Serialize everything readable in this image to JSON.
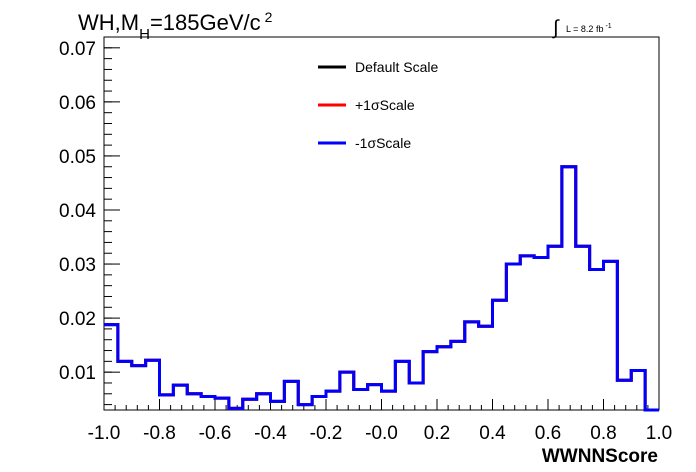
{
  "chart_data": {
    "type": "step-histogram",
    "title": "WH,M",
    "title_sub": "H",
    "title_rest": "=185GeV/c",
    "title_sup": "2",
    "lumi_integral": "∫",
    "lumi_text": "L = 8.2 fb",
    "lumi_sup": "-1",
    "xlabel": "WWNNScore",
    "ylabel": "",
    "xlim": [
      -1.0,
      1.0
    ],
    "ylim": [
      0.003,
      0.072
    ],
    "x_ticks": [
      -1.0,
      -0.8,
      -0.6,
      -0.4,
      -0.2,
      0.0,
      0.2,
      0.4,
      0.6,
      0.8,
      1.0
    ],
    "x_tick_labels": [
      "-1.0",
      "-0.8",
      "-0.6",
      "-0.4",
      "-0.2",
      "-0.0",
      "0.2",
      "0.4",
      "0.6",
      "0.8",
      "1.0"
    ],
    "y_ticks": [
      0.01,
      0.02,
      0.03,
      0.04,
      0.05,
      0.06,
      0.07
    ],
    "y_tick_labels": [
      "0.01",
      "0.02",
      "0.03",
      "0.04",
      "0.05",
      "0.06",
      "0.07"
    ],
    "legend_position": "top-center",
    "bin_edges": [
      -1.0,
      -0.95,
      -0.9,
      -0.85,
      -0.8,
      -0.75,
      -0.7,
      -0.65,
      -0.6,
      -0.55,
      -0.5,
      -0.45,
      -0.4,
      -0.35,
      -0.3,
      -0.25,
      -0.2,
      -0.15,
      -0.1,
      -0.05,
      0.0,
      0.05,
      0.1,
      0.15,
      0.2,
      0.25,
      0.3,
      0.35,
      0.4,
      0.45,
      0.5,
      0.55,
      0.6,
      0.65,
      0.7,
      0.75,
      0.8,
      0.85,
      0.9,
      0.95,
      1.0
    ],
    "series": [
      {
        "name": "Default Scale",
        "color": "#000000",
        "values": [
          0.0188,
          0.012,
          0.0112,
          0.0122,
          0.0058,
          0.0076,
          0.006,
          0.0055,
          0.0052,
          0.0033,
          0.005,
          0.006,
          0.0046,
          0.0083,
          0.004,
          0.0055,
          0.0065,
          0.01,
          0.0068,
          0.0077,
          0.0065,
          0.012,
          0.008,
          0.0138,
          0.0147,
          0.0157,
          0.0193,
          0.0185,
          0.0233,
          0.03,
          0.0315,
          0.0312,
          0.0333,
          0.048,
          0.0333,
          0.029,
          0.0305,
          0.0085,
          0.0103,
          0.003
        ]
      },
      {
        "name": "+1σScale",
        "color": "#ff0000",
        "values": [
          0.0188,
          0.012,
          0.0112,
          0.0122,
          0.0058,
          0.0076,
          0.006,
          0.0055,
          0.0052,
          0.0033,
          0.005,
          0.006,
          0.0046,
          0.0083,
          0.004,
          0.0055,
          0.0065,
          0.01,
          0.0068,
          0.0077,
          0.0065,
          0.012,
          0.008,
          0.0138,
          0.0147,
          0.0157,
          0.0193,
          0.0185,
          0.0233,
          0.03,
          0.0315,
          0.0312,
          0.0333,
          0.048,
          0.0333,
          0.029,
          0.0305,
          0.0085,
          0.0103,
          0.003
        ]
      },
      {
        "name": "-1σScale",
        "color": "#0000ff",
        "values": [
          0.0188,
          0.012,
          0.0112,
          0.0122,
          0.0058,
          0.0076,
          0.006,
          0.0055,
          0.0052,
          0.0033,
          0.005,
          0.006,
          0.0046,
          0.0083,
          0.004,
          0.0055,
          0.0065,
          0.01,
          0.0068,
          0.0077,
          0.0065,
          0.012,
          0.008,
          0.0138,
          0.0147,
          0.0157,
          0.0193,
          0.0185,
          0.0233,
          0.03,
          0.0315,
          0.0312,
          0.0333,
          0.048,
          0.0333,
          0.029,
          0.0305,
          0.0085,
          0.0103,
          0.003
        ]
      }
    ]
  }
}
